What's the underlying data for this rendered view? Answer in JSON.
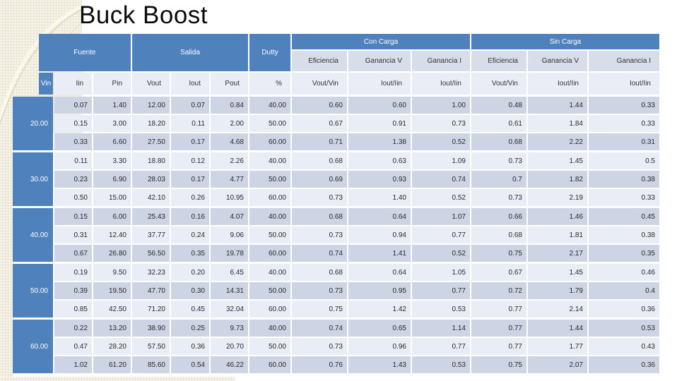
{
  "title": "Buck Boost",
  "colors": {
    "header_blue": "#4F81BD",
    "row_dark": "#CDD5E4",
    "row_light": "#E9EDF5",
    "subheader_gray": "#D7DDE9",
    "texture_beige": "#EDE7D5",
    "title_text": "#0B0B0B"
  },
  "table": {
    "header": {
      "fuente": "Fuente",
      "salida": "Salida",
      "dutty": "Dutty",
      "con_carga": "Con Carga",
      "sin_carga": "Sin Carga",
      "metrics": [
        "Eficiencia",
        "Ganancia V",
        "Ganancia I"
      ],
      "sub": {
        "vin": "Vin",
        "iin": "Iin",
        "pin": "Pin",
        "vout": "Vout",
        "iout": "Iout",
        "pout": "Pout",
        "duty": "%"
      },
      "ratios": [
        "Vout/Vin",
        "Iout/Iin",
        "Iout/Iin"
      ]
    },
    "groups": [
      {
        "vin": "20.00",
        "rows": [
          {
            "iin": "0.07",
            "pin": "1.40",
            "vout": "12.00",
            "iout": "0.07",
            "pout": "0.84",
            "duty": "40.00",
            "cc_ef": "0.60",
            "cc_gv": "0.60",
            "cc_gi": "1.00",
            "sc_ef": "0.48",
            "sc_gv": "1.44",
            "sc_gi": "0.33"
          },
          {
            "iin": "0.15",
            "pin": "3.00",
            "vout": "18.20",
            "iout": "0.11",
            "pout": "2.00",
            "duty": "50.00",
            "cc_ef": "0.67",
            "cc_gv": "0.91",
            "cc_gi": "0.73",
            "sc_ef": "0.61",
            "sc_gv": "1.84",
            "sc_gi": "0.33"
          },
          {
            "iin": "0.33",
            "pin": "6.60",
            "vout": "27.50",
            "iout": "0.17",
            "pout": "4.68",
            "duty": "60.00",
            "cc_ef": "0.71",
            "cc_gv": "1.38",
            "cc_gi": "0.52",
            "sc_ef": "0.68",
            "sc_gv": "2.22",
            "sc_gi": "0.31"
          }
        ]
      },
      {
        "vin": "30.00",
        "rows": [
          {
            "iin": "0.11",
            "pin": "3.30",
            "vout": "18.80",
            "iout": "0.12",
            "pout": "2.26",
            "duty": "40.00",
            "cc_ef": "0.68",
            "cc_gv": "0.63",
            "cc_gi": "1.09",
            "sc_ef": "0.73",
            "sc_gv": "1.45",
            "sc_gi": "0.5"
          },
          {
            "iin": "0.23",
            "pin": "6.90",
            "vout": "28.03",
            "iout": "0.17",
            "pout": "4.77",
            "duty": "50.00",
            "cc_ef": "0.69",
            "cc_gv": "0.93",
            "cc_gi": "0.74",
            "sc_ef": "0.7",
            "sc_gv": "1.82",
            "sc_gi": "0.38"
          },
          {
            "iin": "0.50",
            "pin": "15.00",
            "vout": "42.10",
            "iout": "0.26",
            "pout": "10.95",
            "duty": "60.00",
            "cc_ef": "0.73",
            "cc_gv": "1.40",
            "cc_gi": "0.52",
            "sc_ef": "0.73",
            "sc_gv": "2.19",
            "sc_gi": "0.33"
          }
        ]
      },
      {
        "vin": "40.00",
        "rows": [
          {
            "iin": "0.15",
            "pin": "6.00",
            "vout": "25.43",
            "iout": "0.16",
            "pout": "4.07",
            "duty": "40.00",
            "cc_ef": "0.68",
            "cc_gv": "0.64",
            "cc_gi": "1.07",
            "sc_ef": "0.66",
            "sc_gv": "1.46",
            "sc_gi": "0.45"
          },
          {
            "iin": "0.31",
            "pin": "12.40",
            "vout": "37.77",
            "iout": "0.24",
            "pout": "9.06",
            "duty": "50.00",
            "cc_ef": "0.73",
            "cc_gv": "0.94",
            "cc_gi": "0.77",
            "sc_ef": "0.68",
            "sc_gv": "1.81",
            "sc_gi": "0.38"
          },
          {
            "iin": "0.67",
            "pin": "26.80",
            "vout": "56.50",
            "iout": "0.35",
            "pout": "19.78",
            "duty": "60.00",
            "cc_ef": "0.74",
            "cc_gv": "1.41",
            "cc_gi": "0.52",
            "sc_ef": "0.75",
            "sc_gv": "2.17",
            "sc_gi": "0.35"
          }
        ]
      },
      {
        "vin": "50.00",
        "rows": [
          {
            "iin": "0.19",
            "pin": "9.50",
            "vout": "32.23",
            "iout": "0.20",
            "pout": "6.45",
            "duty": "40.00",
            "cc_ef": "0.68",
            "cc_gv": "0.64",
            "cc_gi": "1.05",
            "sc_ef": "0.67",
            "sc_gv": "1.45",
            "sc_gi": "0.46"
          },
          {
            "iin": "0.39",
            "pin": "19.50",
            "vout": "47.70",
            "iout": "0.30",
            "pout": "14.31",
            "duty": "50.00",
            "cc_ef": "0.73",
            "cc_gv": "0.95",
            "cc_gi": "0.77",
            "sc_ef": "0.72",
            "sc_gv": "1.79",
            "sc_gi": "0.4"
          },
          {
            "iin": "0.85",
            "pin": "42.50",
            "vout": "71.20",
            "iout": "0.45",
            "pout": "32.04",
            "duty": "60.00",
            "cc_ef": "0.75",
            "cc_gv": "1.42",
            "cc_gi": "0.53",
            "sc_ef": "0.77",
            "sc_gv": "2.14",
            "sc_gi": "0.36"
          }
        ]
      },
      {
        "vin": "60.00",
        "rows": [
          {
            "iin": "0.22",
            "pin": "13.20",
            "vout": "38.90",
            "iout": "0.25",
            "pout": "9.73",
            "duty": "40.00",
            "cc_ef": "0.74",
            "cc_gv": "0.65",
            "cc_gi": "1.14",
            "sc_ef": "0.77",
            "sc_gv": "1.44",
            "sc_gi": "0.53"
          },
          {
            "iin": "0.47",
            "pin": "28.20",
            "vout": "57.50",
            "iout": "0.36",
            "pout": "20.70",
            "duty": "50.00",
            "cc_ef": "0.73",
            "cc_gv": "0.96",
            "cc_gi": "0.77",
            "sc_ef": "0.77",
            "sc_gv": "1.77",
            "sc_gi": "0.43"
          },
          {
            "iin": "1.02",
            "pin": "61.20",
            "vout": "85.60",
            "iout": "0.54",
            "pout": "46.22",
            "duty": "60.00",
            "cc_ef": "0.76",
            "cc_gv": "1.43",
            "cc_gi": "0.53",
            "sc_ef": "0.75",
            "sc_gv": "2.07",
            "sc_gi": "0.36"
          }
        ]
      }
    ]
  }
}
